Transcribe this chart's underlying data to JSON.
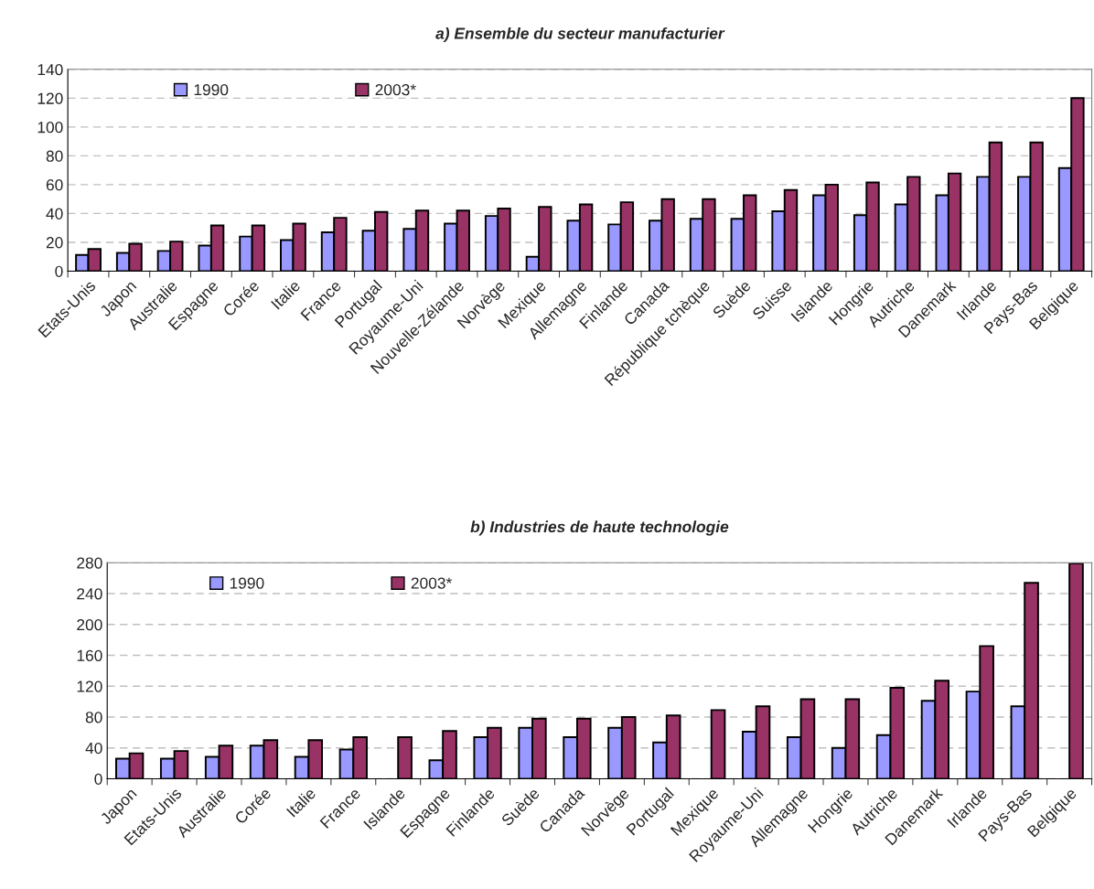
{
  "chart_data": [
    {
      "type": "bar",
      "title": "a) Ensemble du secteur manufacturier",
      "categories": [
        "Etats-Unis",
        "Japon",
        "Australie",
        "Espagne",
        "Corée",
        "Italie",
        "France",
        "Portugal",
        "Royaume-Uni",
        "Nouvelle-Zélande",
        "Norvège",
        "Mexique",
        "Allemagne",
        "Finlande",
        "Canada",
        "République tchèque",
        "Suède",
        "Suisse",
        "Islande",
        "Hongrie",
        "Autriche",
        "Danemark",
        "Irlande",
        "Pays-Bas",
        "Belgique"
      ],
      "series": [
        {
          "name": "1990",
          "color": "#9999ff",
          "values": [
            11.2,
            12.7,
            14,
            17.8,
            24,
            21.5,
            27,
            28,
            29.3,
            33,
            38.3,
            10,
            35,
            32.4,
            35,
            36.3,
            36.3,
            41.5,
            52.7,
            38.8,
            46.3,
            52.7,
            65.4,
            65.4,
            71.5
          ]
        },
        {
          "name": "2003*",
          "color": "#993366",
          "values": [
            15.4,
            19,
            20.5,
            31.7,
            31.7,
            33,
            37,
            41,
            42,
            42,
            43.4,
            44.5,
            46.3,
            47.8,
            50,
            50,
            52.7,
            56.3,
            60,
            61.5,
            65.4,
            67.8,
            89.3,
            89.3,
            120
          ]
        }
      ],
      "ylim": [
        0,
        140
      ],
      "yticks": [
        0,
        20,
        40,
        60,
        80,
        100,
        120,
        140
      ],
      "grid": "y",
      "legend": "top left"
    },
    {
      "type": "bar",
      "title": "b) Industries de haute technologie",
      "categories": [
        "Japon",
        "Etats-Unis",
        "Australie",
        "Corée",
        "Italie",
        "France",
        "Islande",
        "Espagne",
        "Finlande",
        "Suède",
        "Canada",
        "Norvège",
        "Portugal",
        "Mexique",
        "Royaume-Uni",
        "Allemagne",
        "Hongrie",
        "Autriche",
        "Danemark",
        "Irlande",
        "Pays-Bas",
        "Belgique"
      ],
      "series": [
        {
          "name": "1990",
          "color": "#9999ff",
          "values": [
            26,
            26,
            28.5,
            43,
            28.5,
            38,
            null,
            24,
            54,
            66,
            54,
            66,
            47,
            null,
            61,
            54,
            40,
            56.5,
            101,
            113,
            94,
            null
          ]
        },
        {
          "name": "2003*",
          "color": "#993366",
          "values": [
            33,
            36,
            43,
            50,
            50,
            54,
            54,
            62,
            66,
            78,
            78,
            80,
            82,
            89,
            94,
            103,
            103,
            118,
            127,
            172,
            254,
            279
          ]
        }
      ],
      "ylim": [
        0,
        280
      ],
      "yticks": [
        0,
        40,
        80,
        120,
        160,
        200,
        240,
        280
      ],
      "grid": "y",
      "legend": "top left"
    }
  ]
}
